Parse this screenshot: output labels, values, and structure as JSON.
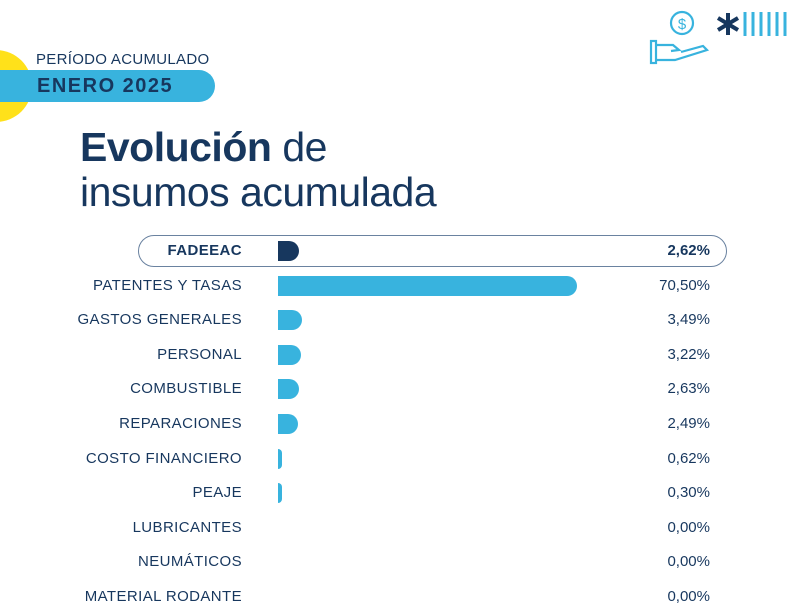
{
  "header": {
    "period_label": "PERÍODO ACUMULADO",
    "period_value": "ENERO 2025"
  },
  "title": {
    "bold": "Evolución",
    "rest_line1": " de",
    "line2": "insumos acumulada"
  },
  "icons": [
    "hand-money-icon",
    "asterisk-logo-icon",
    "stripes-icon"
  ],
  "colors": {
    "accent": "#38b3de",
    "navy": "#17375e",
    "yellow": "#ffe11a"
  },
  "chart_data": {
    "type": "bar",
    "orientation": "horizontal",
    "categories": [
      "FADEEAC",
      "PATENTES Y TASAS",
      "GASTOS GENERALES",
      "PERSONAL",
      "COMBUSTIBLE",
      "REPARACIONES",
      "COSTO FINANCIERO",
      "PEAJE",
      "LUBRICANTES",
      "NEUMÁTICOS",
      "MATERIAL RODANTE"
    ],
    "values": [
      2.62,
      70.5,
      3.49,
      3.22,
      2.63,
      2.49,
      0.62,
      0.3,
      0.0,
      0.0,
      0.0
    ],
    "labels": [
      "2,62%",
      "70,50%",
      "3,49%",
      "3,22%",
      "2,63%",
      "2,49%",
      "0,62%",
      "0,30%",
      "0,00%",
      "0,00%",
      "0,00%"
    ],
    "highlighted": "FADEEAC",
    "unit": "%"
  }
}
